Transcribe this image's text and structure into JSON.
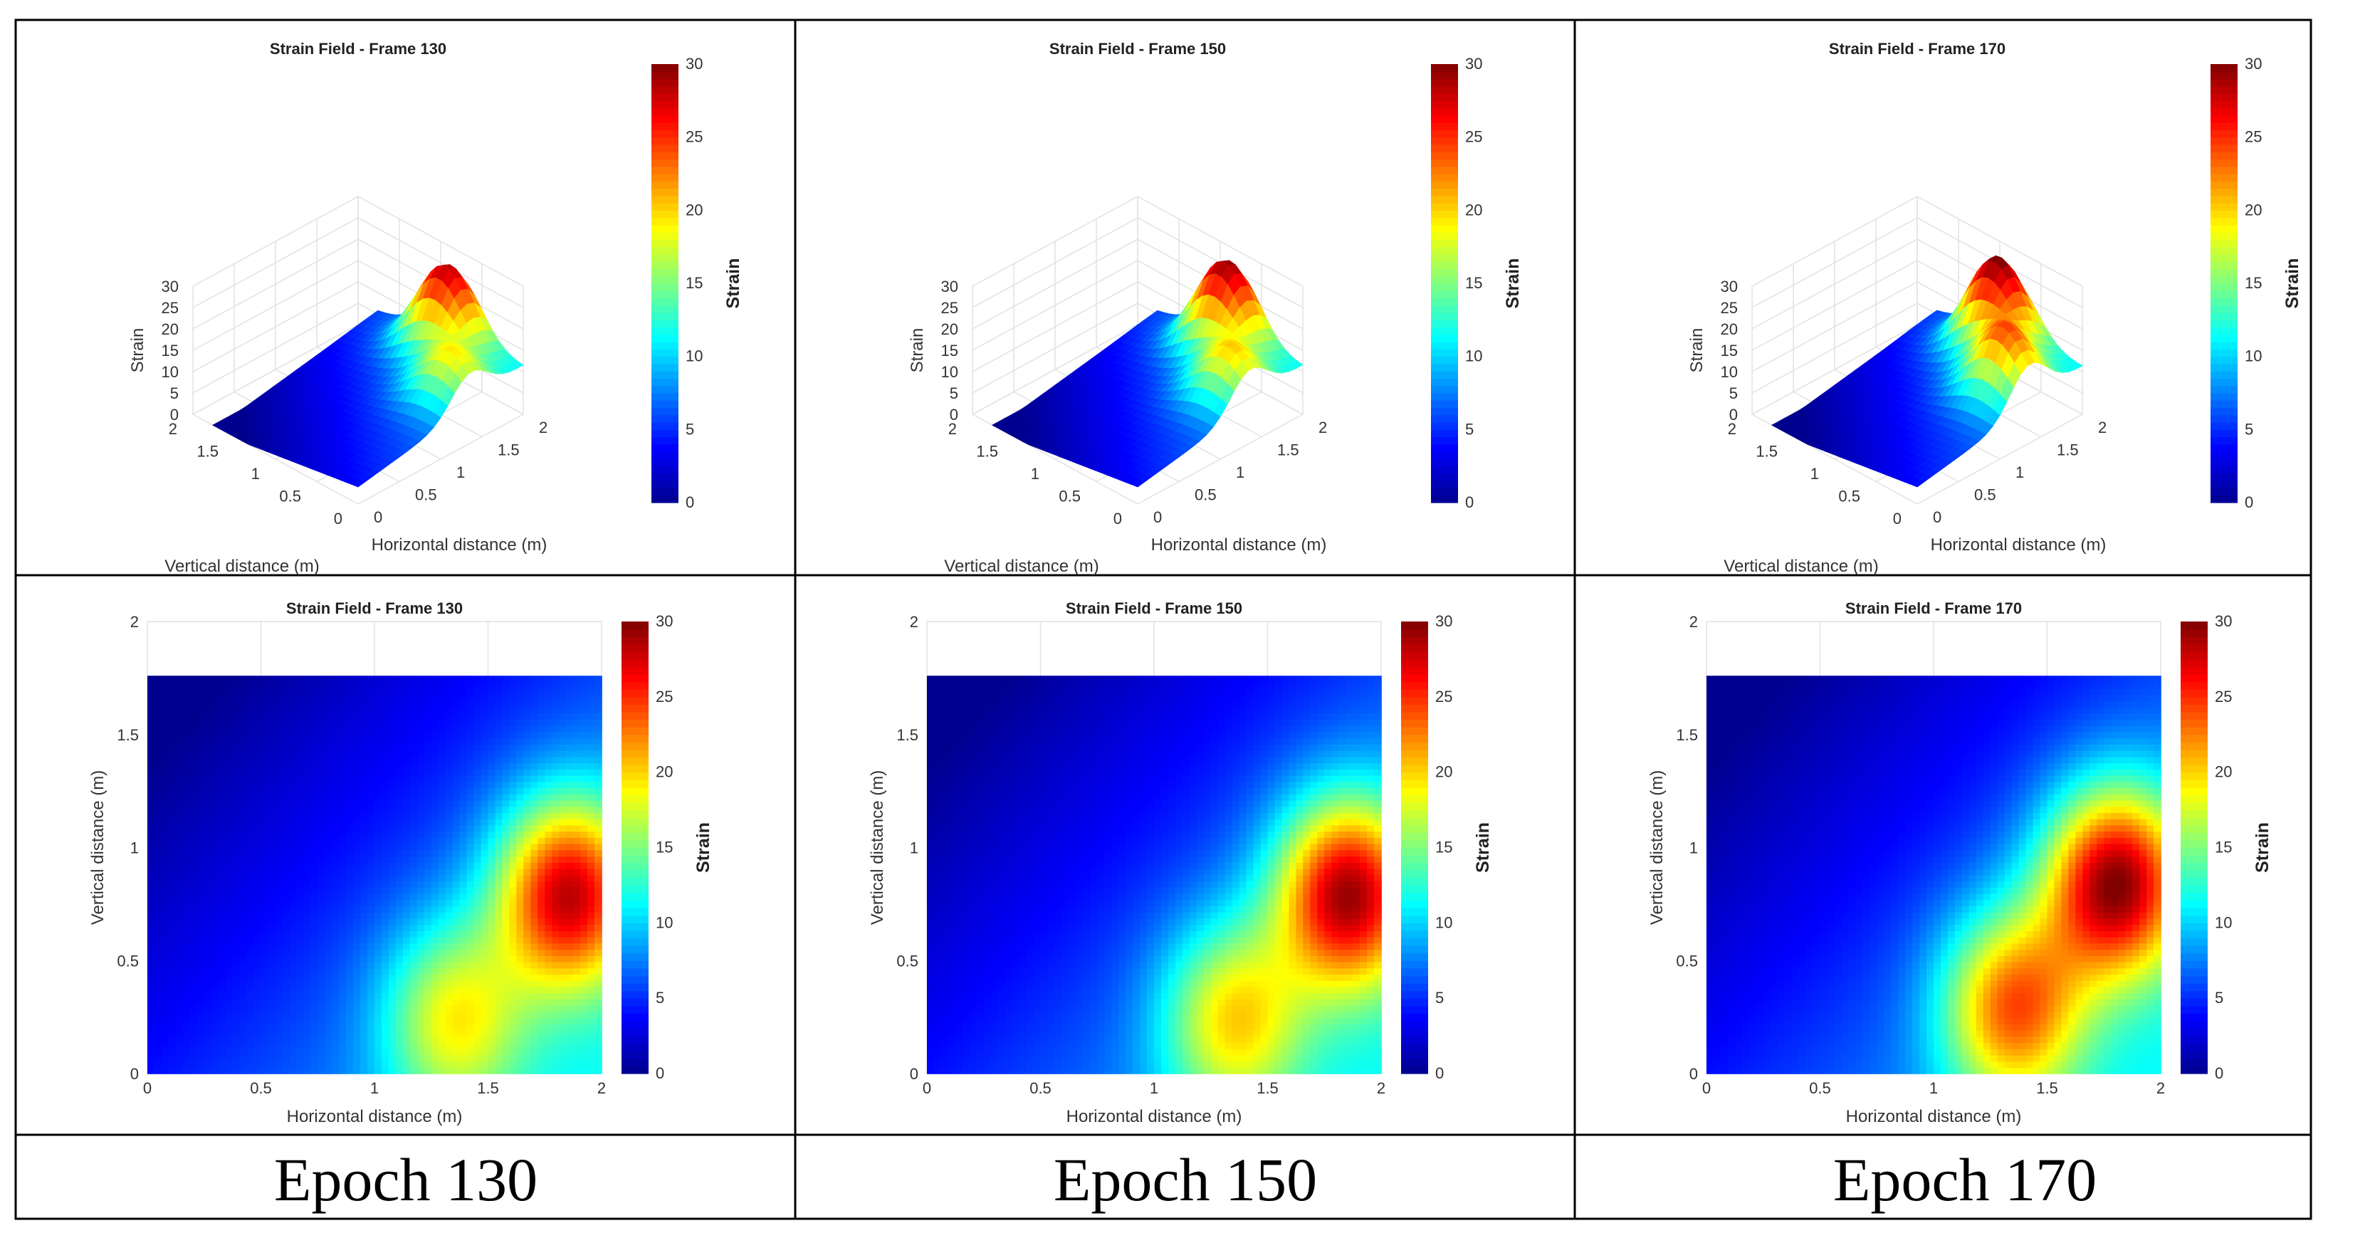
{
  "captions": [
    "Epoch 130",
    "Epoch 150",
    "Epoch 170"
  ],
  "colors": {
    "border": "#000000",
    "gridline": "#e2e2e2",
    "colormap": [
      "#00008f",
      "#0000ff",
      "#0080ff",
      "#00ffff",
      "#80ff80",
      "#ffff00",
      "#ff8000",
      "#ff0000",
      "#800000"
    ]
  },
  "chart_data": [
    {
      "type": "surface",
      "title": "Strain Field - Frame 130",
      "xlabel": "Horizontal distance (m)",
      "ylabel": "Vertical distance (m)",
      "zlabel": "Strain",
      "xticks": [
        "0",
        "0.5",
        "1",
        "1.5",
        "2"
      ],
      "yticks": [
        "0",
        "0.5",
        "1",
        "1.5",
        "2"
      ],
      "zticks": [
        "0",
        "5",
        "10",
        "15",
        "20",
        "25",
        "30"
      ],
      "zlim": [
        0,
        30
      ],
      "colorbar": {
        "label": "Strain",
        "range": [
          0,
          30
        ],
        "ticks": [
          "0",
          "5",
          "10",
          "15",
          "20",
          "25",
          "30"
        ]
      },
      "peaks": [
        {
          "x": 1.85,
          "y": 0.8,
          "strain": 24
        },
        {
          "x": 1.35,
          "y": 0.25,
          "strain": 15
        }
      ]
    },
    {
      "type": "surface",
      "title": "Strain Field - Frame 150",
      "xlabel": "Horizontal distance (m)",
      "ylabel": "Vertical distance (m)",
      "zlabel": "Strain",
      "xticks": [
        "0",
        "0.5",
        "1",
        "1.5",
        "2"
      ],
      "yticks": [
        "0",
        "0.5",
        "1",
        "1.5",
        "2"
      ],
      "zticks": [
        "0",
        "5",
        "10",
        "15",
        "20",
        "25",
        "30"
      ],
      "zlim": [
        0,
        30
      ],
      "colorbar": {
        "label": "Strain",
        "range": [
          0,
          30
        ],
        "ticks": [
          "0",
          "5",
          "10",
          "15",
          "20",
          "25",
          "30"
        ]
      },
      "peaks": [
        {
          "x": 1.85,
          "y": 0.8,
          "strain": 25
        },
        {
          "x": 1.35,
          "y": 0.25,
          "strain": 16
        }
      ]
    },
    {
      "type": "surface",
      "title": "Strain Field - Frame 170",
      "xlabel": "Horizontal distance (m)",
      "ylabel": "Vertical distance (m)",
      "zlabel": "Strain",
      "xticks": [
        "0",
        "0.5",
        "1",
        "1.5",
        "2"
      ],
      "yticks": [
        "0",
        "0.5",
        "1",
        "1.5",
        "2"
      ],
      "zticks": [
        "0",
        "5",
        "10",
        "15",
        "20",
        "25",
        "30"
      ],
      "zlim": [
        0,
        30
      ],
      "colorbar": {
        "label": "Strain",
        "range": [
          0,
          30
        ],
        "ticks": [
          "0",
          "5",
          "10",
          "15",
          "20",
          "25",
          "30"
        ]
      },
      "peaks": [
        {
          "x": 1.8,
          "y": 0.85,
          "strain": 26
        },
        {
          "x": 1.35,
          "y": 0.3,
          "strain": 20
        }
      ]
    },
    {
      "type": "heatmap",
      "title": "Strain Field - Frame 130",
      "xlabel": "Horizontal distance (m)",
      "ylabel": "Vertical distance (m)",
      "xticks": [
        "0",
        "0.5",
        "1",
        "1.5",
        "2"
      ],
      "yticks": [
        "0",
        "0.5",
        "1",
        "1.5",
        "2"
      ],
      "xlim": [
        0,
        2
      ],
      "ylim": [
        0,
        2
      ],
      "data_ymax": 1.76,
      "colorbar": {
        "label": "Strain",
        "range": [
          0,
          30
        ],
        "ticks": [
          "0",
          "5",
          "10",
          "15",
          "20",
          "25",
          "30"
        ]
      },
      "peaks": [
        {
          "x": 1.85,
          "y": 0.8,
          "strain": 24
        },
        {
          "x": 1.35,
          "y": 0.25,
          "strain": 15
        }
      ]
    },
    {
      "type": "heatmap",
      "title": "Strain Field - Frame 150",
      "xlabel": "Horizontal distance (m)",
      "ylabel": "Vertical distance (m)",
      "xticks": [
        "0",
        "0.5",
        "1",
        "1.5",
        "2"
      ],
      "yticks": [
        "0",
        "0.5",
        "1",
        "1.5",
        "2"
      ],
      "xlim": [
        0,
        2
      ],
      "ylim": [
        0,
        2
      ],
      "data_ymax": 1.76,
      "colorbar": {
        "label": "Strain",
        "range": [
          0,
          30
        ],
        "ticks": [
          "0",
          "5",
          "10",
          "15",
          "20",
          "25",
          "30"
        ]
      },
      "peaks": [
        {
          "x": 1.85,
          "y": 0.8,
          "strain": 25
        },
        {
          "x": 1.35,
          "y": 0.25,
          "strain": 16
        }
      ]
    },
    {
      "type": "heatmap",
      "title": "Strain Field - Frame 170",
      "xlabel": "Horizontal distance (m)",
      "ylabel": "Vertical distance (m)",
      "xticks": [
        "0",
        "0.5",
        "1",
        "1.5",
        "2"
      ],
      "yticks": [
        "0",
        "0.5",
        "1",
        "1.5",
        "2"
      ],
      "xlim": [
        0,
        2
      ],
      "ylim": [
        0,
        2
      ],
      "data_ymax": 1.76,
      "colorbar": {
        "label": "Strain",
        "range": [
          0,
          30
        ],
        "ticks": [
          "0",
          "5",
          "10",
          "15",
          "20",
          "25",
          "30"
        ]
      },
      "peaks": [
        {
          "x": 1.8,
          "y": 0.85,
          "strain": 26
        },
        {
          "x": 1.35,
          "y": 0.3,
          "strain": 20
        }
      ]
    }
  ]
}
